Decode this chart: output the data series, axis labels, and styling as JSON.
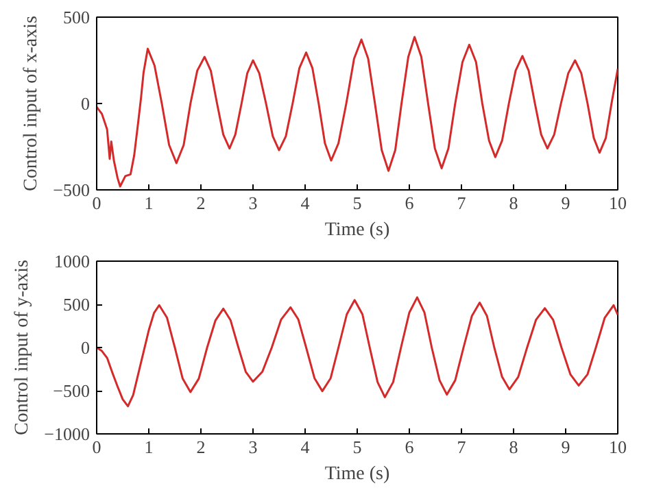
{
  "chart_data": [
    {
      "type": "line",
      "xlabel": "Time (s)",
      "ylabel": "Control input of x-axis",
      "xlim": [
        0,
        10
      ],
      "ylim": [
        -500,
        500
      ],
      "xticks": [
        0,
        1,
        2,
        3,
        4,
        5,
        6,
        7,
        8,
        9,
        10
      ],
      "yticks": [
        -500,
        0,
        500
      ],
      "series": [
        {
          "color": "#d42a2a",
          "x": [
            0,
            0.1,
            0.2,
            0.25,
            0.28,
            0.33,
            0.4,
            0.45,
            0.55,
            0.65,
            0.72,
            0.8,
            0.85,
            0.9,
            0.98,
            1.11,
            1.25,
            1.39,
            1.53,
            1.67,
            1.8,
            1.93,
            2.07,
            2.19,
            2.31,
            2.43,
            2.55,
            2.66,
            2.78,
            2.89,
            3.0,
            3.12,
            3.25,
            3.38,
            3.5,
            3.63,
            3.76,
            3.89,
            4.02,
            4.14,
            4.26,
            4.38,
            4.5,
            4.64,
            4.79,
            4.94,
            5.08,
            5.21,
            5.34,
            5.47,
            5.6,
            5.73,
            5.85,
            5.98,
            6.1,
            6.23,
            6.36,
            6.49,
            6.62,
            6.75,
            6.88,
            7.02,
            7.15,
            7.28,
            7.4,
            7.53,
            7.65,
            7.78,
            7.91,
            8.04,
            8.17,
            8.29,
            8.41,
            8.53,
            8.65,
            8.78,
            8.91,
            9.05,
            9.18,
            9.3,
            9.42,
            9.54,
            9.65,
            9.77,
            9.88,
            10
          ],
          "values": [
            -20,
            -60,
            -150,
            -320,
            -220,
            -330,
            -430,
            -480,
            -420,
            -410,
            -300,
            -100,
            30,
            180,
            317,
            220,
            0,
            -240,
            -345,
            -240,
            0,
            190,
            270,
            190,
            0,
            -180,
            -260,
            -180,
            0,
            175,
            250,
            175,
            0,
            -190,
            -270,
            -190,
            0,
            205,
            295,
            205,
            0,
            -230,
            -330,
            -230,
            0,
            260,
            370,
            260,
            0,
            -270,
            -390,
            -270,
            0,
            270,
            385,
            270,
            0,
            -260,
            -375,
            -260,
            0,
            240,
            340,
            240,
            0,
            -215,
            -310,
            -215,
            0,
            190,
            275,
            190,
            0,
            -180,
            -260,
            -180,
            0,
            175,
            250,
            175,
            0,
            -200,
            -285,
            -200,
            0,
            200
          ]
        }
      ]
    },
    {
      "type": "line",
      "xlabel": "Time (s)",
      "ylabel": "Control input of y-axis",
      "xlim": [
        0,
        10
      ],
      "ylim": [
        -1000,
        1000
      ],
      "xticks": [
        0,
        1,
        2,
        3,
        4,
        5,
        6,
        7,
        8,
        9,
        10
      ],
      "yticks": [
        -1000,
        -500,
        0,
        500,
        1000
      ],
      "series": [
        {
          "color": "#d42a2a",
          "x": [
            0,
            0.1,
            0.2,
            0.3,
            0.4,
            0.5,
            0.6,
            0.7,
            0.8,
            0.9,
            1.0,
            1.1,
            1.2,
            1.35,
            1.5,
            1.65,
            1.8,
            1.96,
            2.12,
            2.28,
            2.43,
            2.57,
            2.72,
            2.86,
            3.0,
            3.18,
            3.36,
            3.54,
            3.72,
            3.87,
            4.02,
            4.18,
            4.33,
            4.49,
            4.64,
            4.8,
            4.95,
            5.1,
            5.24,
            5.39,
            5.53,
            5.69,
            5.84,
            6.0,
            6.15,
            6.29,
            6.43,
            6.58,
            6.72,
            6.88,
            7.04,
            7.2,
            7.35,
            7.49,
            7.63,
            7.78,
            7.92,
            8.09,
            8.26,
            8.43,
            8.6,
            8.76,
            8.92,
            9.09,
            9.25,
            9.42,
            9.58,
            9.75,
            9.92,
            10
          ],
          "values": [
            0,
            -40,
            -120,
            -290,
            -450,
            -600,
            -680,
            -550,
            -300,
            -50,
            200,
            400,
            490,
            345,
            0,
            -360,
            -515,
            -360,
            0,
            315,
            450,
            315,
            0,
            -280,
            -395,
            -280,
            0,
            325,
            465,
            325,
            0,
            -355,
            -505,
            -355,
            0,
            385,
            550,
            385,
            0,
            -400,
            -575,
            -400,
            0,
            405,
            580,
            405,
            0,
            -380,
            -545,
            -380,
            0,
            365,
            520,
            365,
            0,
            -340,
            -485,
            -340,
            0,
            320,
            455,
            320,
            0,
            -310,
            -440,
            -310,
            0,
            345,
            490,
            380
          ]
        }
      ]
    }
  ]
}
